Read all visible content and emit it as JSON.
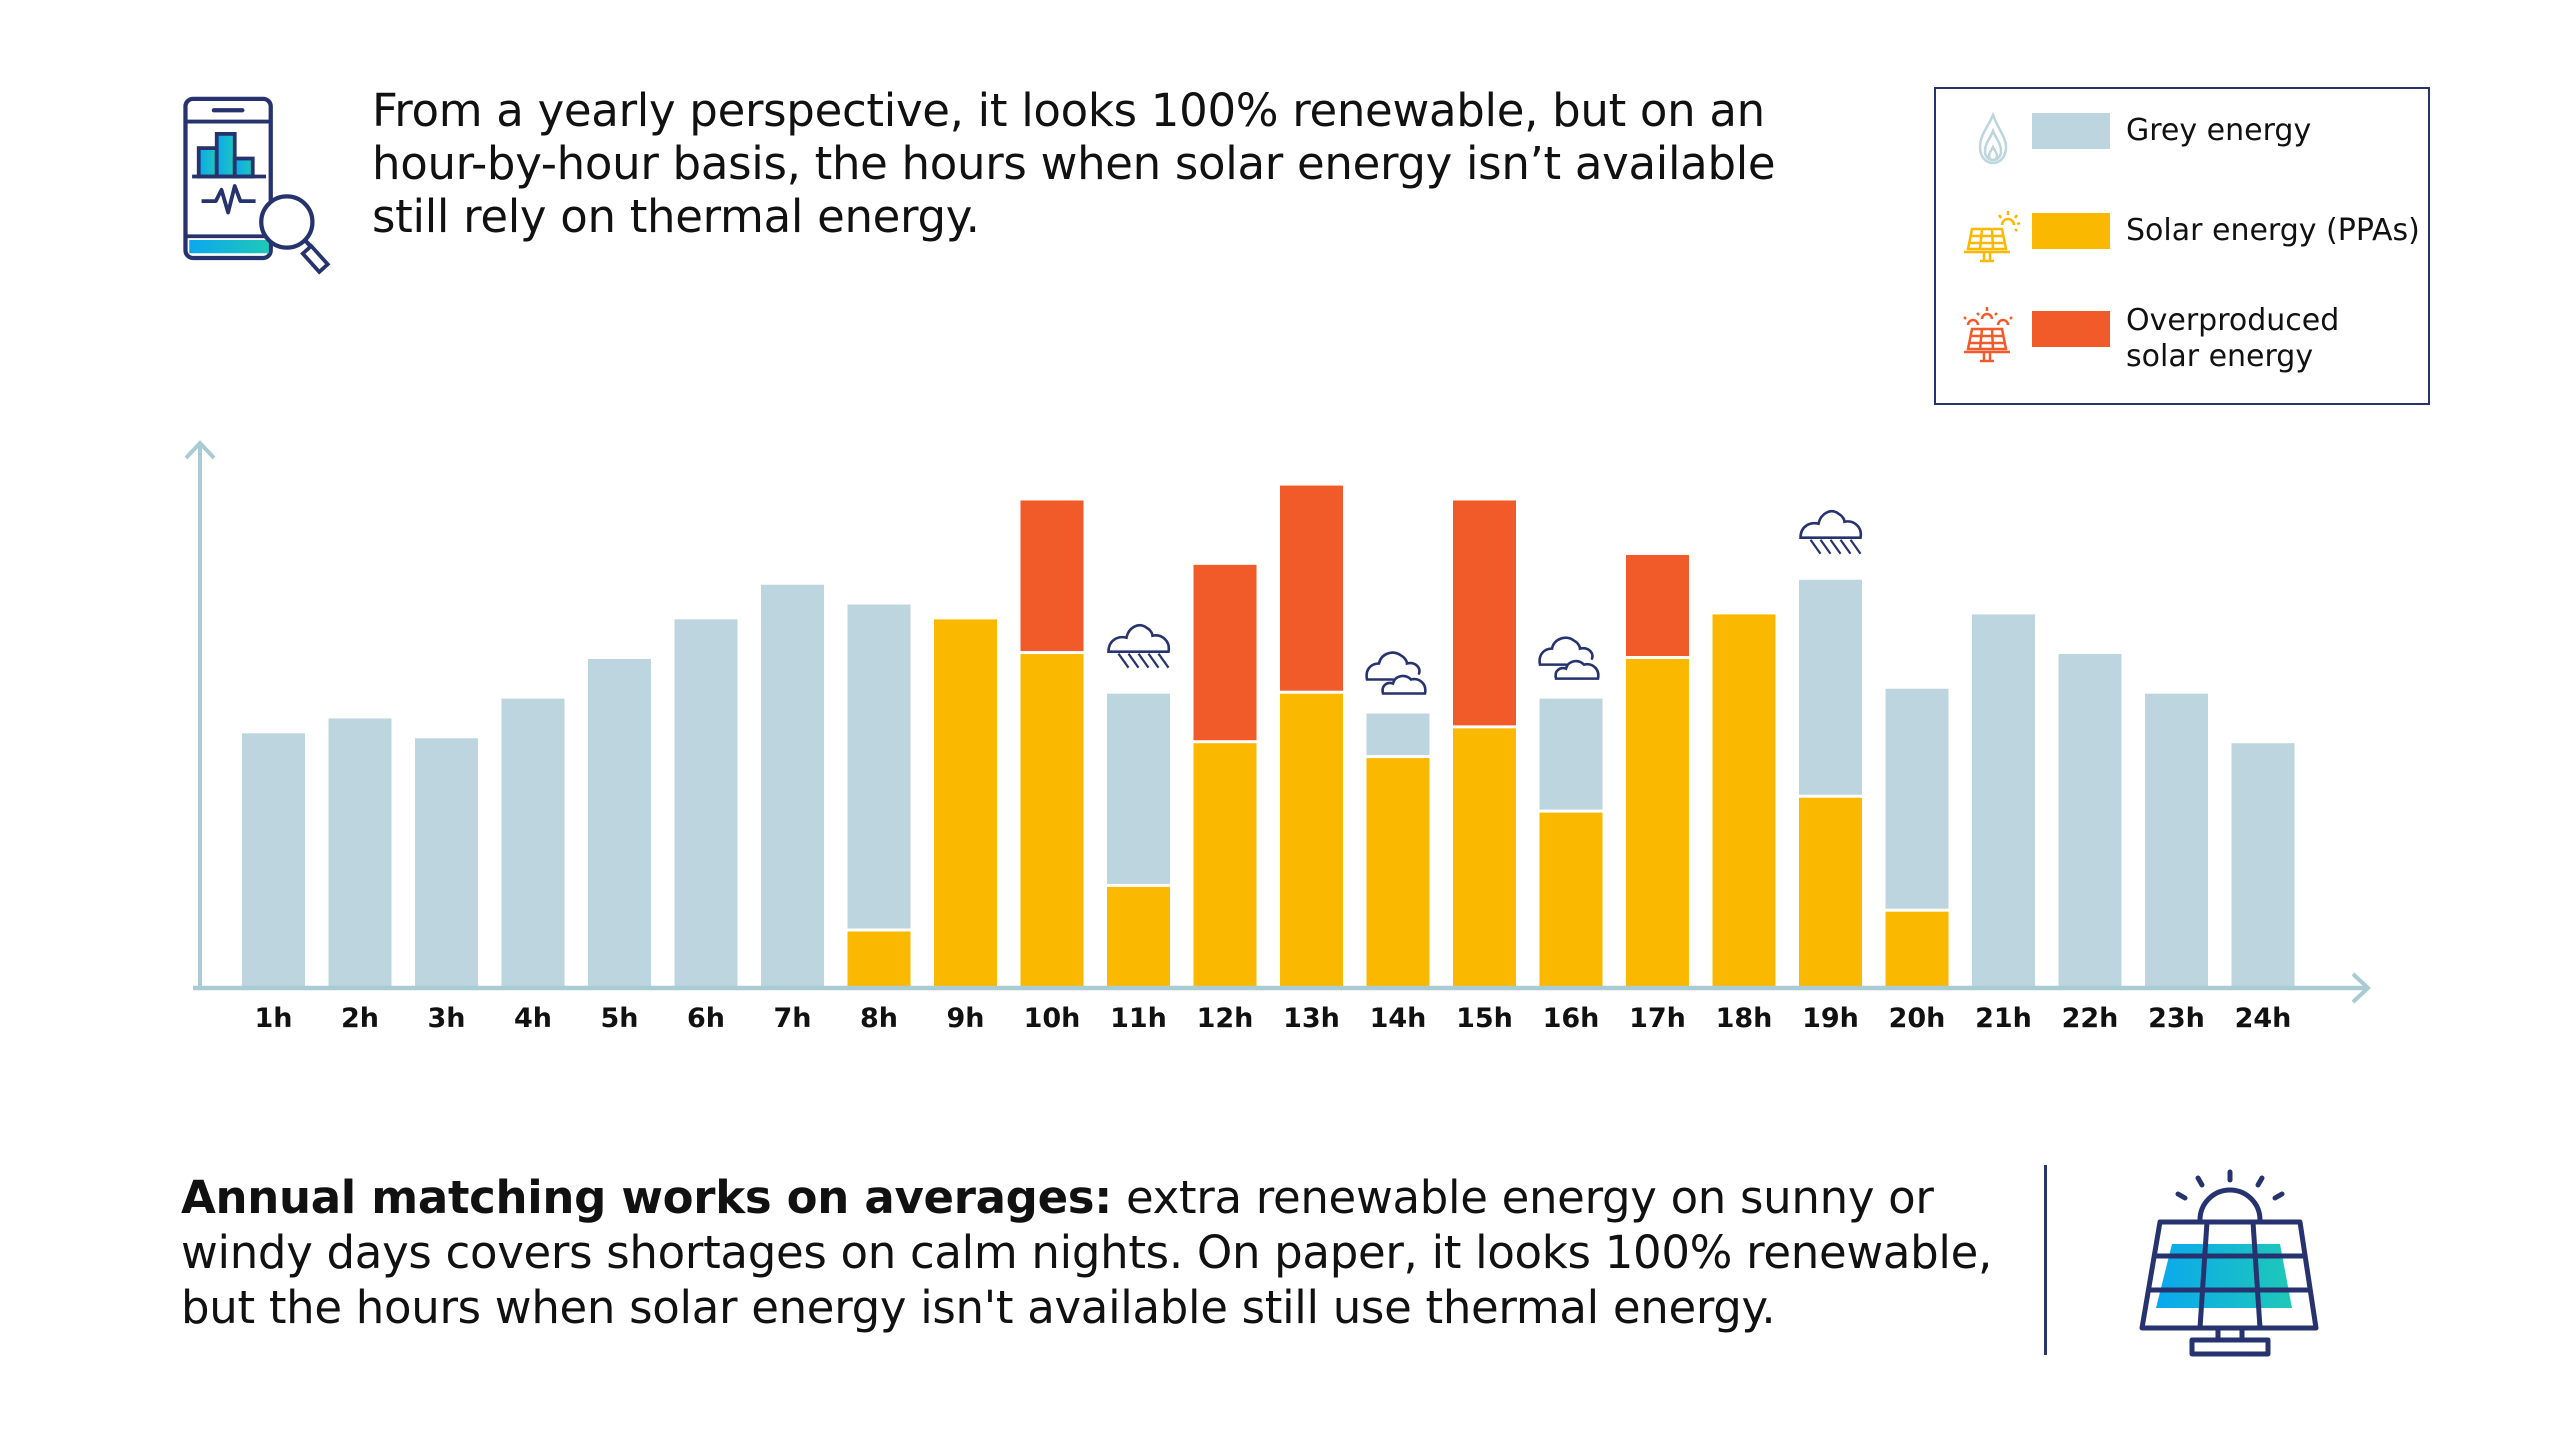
{
  "headline": "From a yearly perspective, it looks 100% renewable, but on an hour-by-hour basis, the hours when solar energy isn’t available still rely on thermal energy.",
  "legend": {
    "items": [
      {
        "key": "grey",
        "label": "Grey energy",
        "color": "#bcd5de",
        "icon": "flame-icon"
      },
      {
        "key": "solar",
        "label": "Solar energy (PPAs)",
        "color": "#fab900",
        "icon": "solar-panel-sun-icon"
      },
      {
        "key": "over",
        "label_line1": "Overproduced",
        "label_line2": "solar energy",
        "color": "#f15a29",
        "icon": "solar-panel-multi-sun-icon"
      }
    ]
  },
  "colors": {
    "grey": "#bcd5de",
    "solar": "#fab900",
    "over": "#f15a29",
    "axis": "#a9cbd4",
    "navy": "#26336e"
  },
  "chart_data": {
    "type": "bar",
    "stacked": true,
    "title": "",
    "xlabel": "",
    "ylabel": "",
    "ylim": [
      0,
      110
    ],
    "grid": false,
    "legend_position": "top-right",
    "categories": [
      "1h",
      "2h",
      "3h",
      "4h",
      "5h",
      "6h",
      "7h",
      "8h",
      "9h",
      "10h",
      "11h",
      "12h",
      "13h",
      "14h",
      "15h",
      "16h",
      "17h",
      "18h",
      "19h",
      "20h",
      "21h",
      "22h",
      "23h",
      "24h"
    ],
    "series": [
      {
        "name": "Solar energy (PPAs)",
        "key": "solar",
        "values": [
          0,
          0,
          0,
          0,
          0,
          0,
          0,
          11,
          74,
          67,
          20,
          49,
          59,
          46,
          52,
          35,
          66,
          75,
          38,
          15,
          0,
          0,
          0,
          0
        ]
      },
      {
        "name": "Grey energy",
        "key": "grey",
        "values": [
          51,
          54,
          50,
          58,
          66,
          74,
          81,
          66,
          0,
          0,
          39,
          0,
          0,
          9,
          0,
          23,
          0,
          0,
          44,
          45,
          75,
          67,
          59,
          49
        ]
      },
      {
        "name": "Overproduced solar energy",
        "key": "over",
        "values": [
          0,
          0,
          0,
          0,
          0,
          0,
          0,
          0,
          0,
          31,
          0,
          36,
          42,
          0,
          46,
          0,
          21,
          0,
          0,
          0,
          0,
          0,
          0,
          0
        ]
      }
    ],
    "annotations": [
      {
        "category": "11h",
        "icon": "rain-cloud-icon"
      },
      {
        "category": "14h",
        "icon": "clouds-icon"
      },
      {
        "category": "16h",
        "icon": "clouds-icon"
      },
      {
        "category": "19h",
        "icon": "rain-cloud-icon"
      }
    ]
  },
  "bottom": {
    "bold_lead": "Annual matching works on averages:",
    "text": " extra renewable energy on sunny or windy days covers shortages on calm nights. On paper, it looks 100% renewable, but the hours when solar energy isn't available still use thermal energy."
  }
}
